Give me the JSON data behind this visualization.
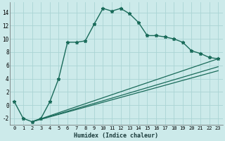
{
  "xlabel": "Humidex (Indice chaleur)",
  "xlim": [
    -0.5,
    23.5
  ],
  "ylim": [
    -3,
    15.5
  ],
  "background_color": "#cceaea",
  "grid_color": "#aad4d4",
  "line_color": "#1a6b5a",
  "line1_x": [
    0,
    1,
    2,
    3,
    4,
    5,
    6,
    7,
    8,
    9,
    10,
    11,
    12,
    13,
    14,
    15,
    16,
    17,
    18,
    19,
    20,
    21,
    22,
    23
  ],
  "line1_y": [
    0.5,
    -2.0,
    -2.5,
    -2.0,
    0.5,
    4.0,
    9.5,
    9.5,
    9.7,
    12.2,
    14.6,
    14.2,
    14.6,
    13.8,
    12.5,
    10.5,
    10.5,
    10.3,
    10.0,
    9.5,
    8.2,
    7.8,
    7.2,
    7.0
  ],
  "line2_x": [
    2,
    23
  ],
  "line2_y": [
    -2.5,
    7.0
  ],
  "line3_x": [
    2,
    23
  ],
  "line3_y": [
    -2.5,
    5.8
  ],
  "line4_x": [
    2,
    23
  ],
  "line4_y": [
    -2.5,
    5.2
  ],
  "xtick_positions": [
    0,
    1,
    2,
    3,
    4,
    5,
    6,
    7,
    8,
    9,
    10,
    11,
    12,
    13,
    14,
    15,
    16,
    17,
    18,
    19,
    20,
    21,
    22,
    23
  ],
  "xtick_labels": [
    "0",
    "1",
    "2",
    "3",
    "4",
    "5",
    "6",
    "7",
    "8",
    "9",
    "10",
    "11",
    "12",
    "13",
    "14",
    "15",
    "16",
    "17",
    "18",
    "19",
    "20",
    "21",
    "22",
    "23"
  ],
  "ytick_values": [
    -2,
    0,
    2,
    4,
    6,
    8,
    10,
    12,
    14
  ]
}
